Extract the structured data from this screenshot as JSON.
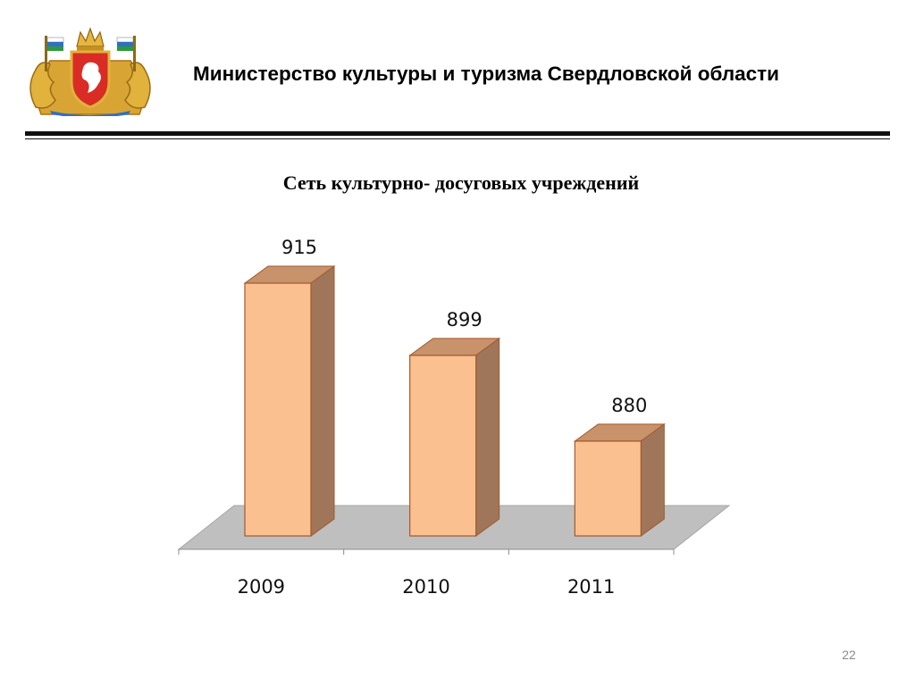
{
  "header": {
    "organization": "Министерство культуры  и туризма Свердловской области",
    "emblem_icon": "sverdlovsk-oblast-coat-of-arms-icon"
  },
  "page_number": "22",
  "colors": {
    "bar_front": "#FAC090",
    "bar_top": "#C8926A",
    "bar_side": "#A0765A",
    "bar_outline": "#A05A2C",
    "floor": "#BFBFBF"
  },
  "chart_data": {
    "type": "bar",
    "title": "Сеть культурно- досуговых учреждений",
    "categories": [
      "2009",
      "2010",
      "2011"
    ],
    "values": [
      915,
      899,
      880
    ],
    "data_labels": [
      "915",
      "899",
      "880"
    ],
    "xlabel": "",
    "ylabel": "",
    "style": "3d-column",
    "grid": false,
    "legend": "none"
  }
}
